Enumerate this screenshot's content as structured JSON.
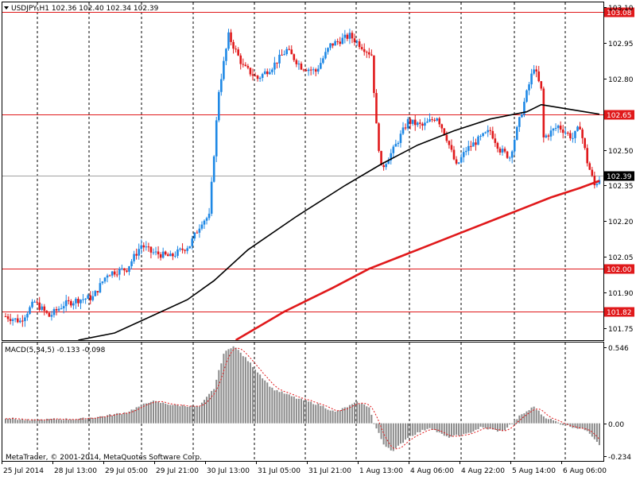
{
  "header": {
    "symbol_line": "USDJPY,H1  102.36 102.40 102.34 102.39",
    "macd_line": "MACD(5,34,5) -0.133 -0.098",
    "copyright": "MetaTrader, © 2001-2014, MetaQuotes Software Corp."
  },
  "colors": {
    "bull": "#1e88e5",
    "bear": "#e0191b",
    "level": "#e0191b",
    "ma_fast": "#000000",
    "ma_slow": "#e0191b",
    "macd_hist": "#8a8a8a",
    "signal": "#e0191b",
    "grid": "#000000",
    "current_line": "#a0a0a0"
  },
  "chart_data": [
    {
      "type": "candlestick",
      "symbol": "USDJPY",
      "timeframe": "H1",
      "ohlc_current": {
        "open": 102.36,
        "high": 102.4,
        "low": 102.34,
        "close": 102.39
      },
      "ylim": [
        101.7,
        103.12
      ],
      "y_ticks": [
        "103.10",
        "102.95",
        "102.80",
        "102.50",
        "102.35",
        "102.20",
        "102.05",
        "101.90",
        "101.75"
      ],
      "x_ticks": [
        "25 Jul 2014",
        "28 Jul 13:00",
        "29 Jul 05:00",
        "29 Jul 21:00",
        "30 Jul 13:00",
        "31 Jul 05:00",
        "31 Jul 21:00",
        "1 Aug 13:00",
        "4 Aug 06:00",
        "4 Aug 22:00",
        "5 Aug 14:00",
        "6 Aug 06:00"
      ],
      "levels": [
        {
          "label": "103.08",
          "value": 103.08
        },
        {
          "label": "102.65",
          "value": 102.65
        },
        {
          "label": "102.00",
          "value": 102.0
        },
        {
          "label": "101.82",
          "value": 101.82
        }
      ],
      "current_price": {
        "label": "102.39",
        "value": 102.39
      },
      "anchors": [
        {
          "i": 0,
          "v": 101.8
        },
        {
          "i": 6,
          "v": 101.78
        },
        {
          "i": 12,
          "v": 101.86
        },
        {
          "i": 18,
          "v": 101.8
        },
        {
          "i": 24,
          "v": 101.85
        },
        {
          "i": 30,
          "v": 101.87
        },
        {
          "i": 36,
          "v": 101.88
        },
        {
          "i": 42,
          "v": 101.98
        },
        {
          "i": 50,
          "v": 102.0
        },
        {
          "i": 56,
          "v": 102.1
        },
        {
          "i": 60,
          "v": 102.07
        },
        {
          "i": 68,
          "v": 102.05
        },
        {
          "i": 76,
          "v": 102.1
        },
        {
          "i": 81,
          "v": 102.2
        },
        {
          "i": 84,
          "v": 102.22
        },
        {
          "i": 88,
          "v": 102.75
        },
        {
          "i": 92,
          "v": 102.98
        },
        {
          "i": 98,
          "v": 102.85
        },
        {
          "i": 104,
          "v": 102.8
        },
        {
          "i": 110,
          "v": 102.85
        },
        {
          "i": 116,
          "v": 102.92
        },
        {
          "i": 122,
          "v": 102.85
        },
        {
          "i": 128,
          "v": 102.83
        },
        {
          "i": 134,
          "v": 102.94
        },
        {
          "i": 142,
          "v": 102.98
        },
        {
          "i": 151,
          "v": 102.9
        },
        {
          "i": 153,
          "v": 102.6
        },
        {
          "i": 155,
          "v": 102.42
        },
        {
          "i": 160,
          "v": 102.5
        },
        {
          "i": 166,
          "v": 102.62
        },
        {
          "i": 172,
          "v": 102.6
        },
        {
          "i": 178,
          "v": 102.64
        },
        {
          "i": 182,
          "v": 102.55
        },
        {
          "i": 186,
          "v": 102.43
        },
        {
          "i": 190,
          "v": 102.5
        },
        {
          "i": 196,
          "v": 102.55
        },
        {
          "i": 200,
          "v": 102.58
        },
        {
          "i": 204,
          "v": 102.5
        },
        {
          "i": 208,
          "v": 102.47
        },
        {
          "i": 214,
          "v": 102.7
        },
        {
          "i": 218,
          "v": 102.85
        },
        {
          "i": 221,
          "v": 102.75
        },
        {
          "i": 222,
          "v": 102.55
        },
        {
          "i": 228,
          "v": 102.6
        },
        {
          "i": 234,
          "v": 102.55
        },
        {
          "i": 237,
          "v": 102.6
        },
        {
          "i": 240,
          "v": 102.45
        },
        {
          "i": 243,
          "v": 102.35
        },
        {
          "i": 245,
          "v": 102.38
        }
      ],
      "candle_count": 246,
      "moving_averages": [
        {
          "kind": "fast",
          "points": [
            [
              30,
              101.7
            ],
            [
              45,
              101.73
            ],
            [
              60,
              101.8
            ],
            [
              75,
              101.87
            ],
            [
              86,
              101.95
            ],
            [
              100,
              102.08
            ],
            [
              120,
              102.22
            ],
            [
              140,
              102.35
            ],
            [
              155,
              102.44
            ],
            [
              170,
              102.52
            ],
            [
              185,
              102.58
            ],
            [
              200,
              102.63
            ],
            [
              215,
              102.66
            ],
            [
              221,
              102.69
            ],
            [
              233,
              102.67
            ],
            [
              245,
              102.65
            ]
          ]
        },
        {
          "kind": "slow",
          "points": [
            [
              95,
              101.7
            ],
            [
              115,
              101.82
            ],
            [
              135,
              101.92
            ],
            [
              150,
              102.0
            ],
            [
              170,
              102.08
            ],
            [
              190,
              102.16
            ],
            [
              210,
              102.24
            ],
            [
              225,
              102.3
            ],
            [
              237,
              102.34
            ],
            [
              245,
              102.37
            ]
          ]
        }
      ]
    },
    {
      "type": "bar",
      "name": "MACD(5,34,5)",
      "values_current": {
        "macd": -0.133,
        "signal": -0.098
      },
      "ylim": [
        -0.27,
        0.58
      ],
      "y_ticks": [
        "0.546",
        "0.00",
        "-0.234"
      ],
      "anchors": [
        {
          "i": 0,
          "v": 0.04
        },
        {
          "i": 10,
          "v": 0.02
        },
        {
          "i": 20,
          "v": 0.03
        },
        {
          "i": 30,
          "v": 0.03
        },
        {
          "i": 40,
          "v": 0.05
        },
        {
          "i": 50,
          "v": 0.08
        },
        {
          "i": 60,
          "v": 0.16
        },
        {
          "i": 70,
          "v": 0.13
        },
        {
          "i": 80,
          "v": 0.12
        },
        {
          "i": 86,
          "v": 0.25
        },
        {
          "i": 90,
          "v": 0.5
        },
        {
          "i": 94,
          "v": 0.56
        },
        {
          "i": 100,
          "v": 0.45
        },
        {
          "i": 110,
          "v": 0.25
        },
        {
          "i": 120,
          "v": 0.18
        },
        {
          "i": 130,
          "v": 0.13
        },
        {
          "i": 136,
          "v": 0.08
        },
        {
          "i": 145,
          "v": 0.15
        },
        {
          "i": 150,
          "v": 0.12
        },
        {
          "i": 152,
          "v": 0.0
        },
        {
          "i": 156,
          "v": -0.15
        },
        {
          "i": 160,
          "v": -0.2
        },
        {
          "i": 166,
          "v": -0.1
        },
        {
          "i": 175,
          "v": -0.03
        },
        {
          "i": 182,
          "v": -0.1
        },
        {
          "i": 190,
          "v": -0.08
        },
        {
          "i": 196,
          "v": -0.03
        },
        {
          "i": 205,
          "v": -0.06
        },
        {
          "i": 212,
          "v": 0.05
        },
        {
          "i": 218,
          "v": 0.12
        },
        {
          "i": 222,
          "v": 0.05
        },
        {
          "i": 230,
          "v": -0.01
        },
        {
          "i": 240,
          "v": -0.05
        },
        {
          "i": 245,
          "v": -0.15
        }
      ]
    }
  ]
}
